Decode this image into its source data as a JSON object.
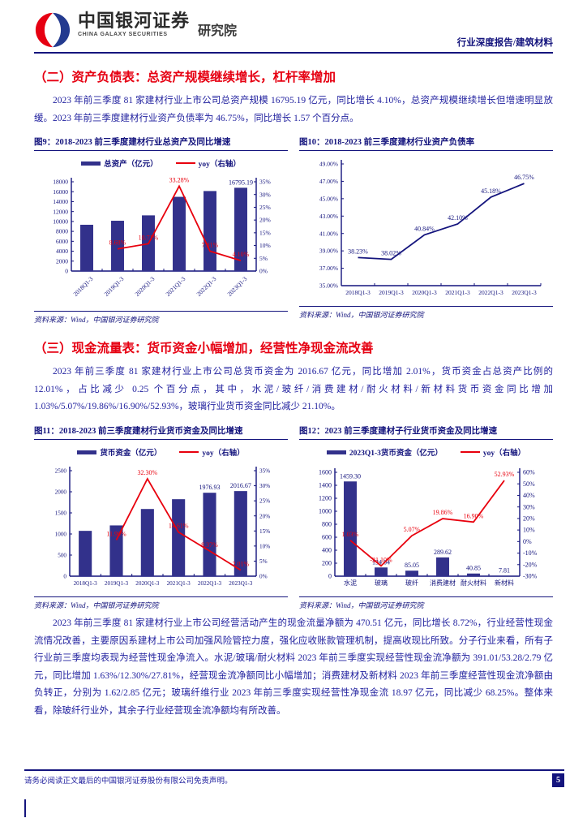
{
  "header": {
    "brand_cn": "中国银河证券",
    "brand_en": "CHINA GALAXY SECURITIES",
    "brand_suffix": "研究院",
    "report_tag": "行业深度报告/建筑材料"
  },
  "sections": [
    {
      "title": "（二）资产负债表：总资产规模继续增长，杠杆率增加",
      "paragraphs": [
        "2023 年前三季度 81 家建材行业上市公司总资产规模 16795.19 亿元，同比增长 4.10%，总资产规模继续增长但增速明显放缓。2023 年前三季度建材行业资产负债率为 46.75%，同比增长 1.57 个百分点。"
      ]
    },
    {
      "title": "（三）现金流量表：货币资金小幅增加，经营性净现金流改善",
      "paragraphs": [
        "2023 年前三季度 81 家建材行业上市公司总货币资金为 2016.67 亿元，同比增加 2.01%，货币资金占总资产比例的 12.01%，占比减少 0.25 个百分点，其中，水泥/玻纤/消费建材/耐火材料/新材料货币资金同比增加 1.03%/5.07%/19.86%/16.90%/52.93%，玻璃行业货币资金同比减少 21.10%。",
        "2023 年前三季度 81 家建材行业上市公司经营活动产生的现金流量净额为 470.51 亿元，同比增长 8.72%，行业经营性现金流情况改善，主要原因系建材上市公司加强风险管控力度，强化应收账款管理机制，提高收现比所致。分子行业来看，所有子行业前三季度均表现为经营性现金净流入。水泥/玻璃/耐火材料 2023 年前三季度实现经营性现金流净额为 391.01/53.28/2.79 亿元，同比增加 1.63%/12.30%/27.81%，经营现金流净额同比小幅增加；消费建材及新材料 2023 年前三季度经营性现金流净额由负转正，分别为 1.62/2.85 亿元；玻璃纤维行业 2023 年前三季度实现经营性净现金流 18.97 亿元，同比减少 68.25%。整体来看，除玻纤行业外，其余子行业经营现金流净额均有所改善。"
      ]
    }
  ],
  "chart_data": [
    {
      "type": "bar+line",
      "title": "图9：2018-2023 前三季度建材行业总资产及同比增速",
      "source": "资料来源：Wind，中国银河证券研究院",
      "categories": [
        "2018Q1-3",
        "2019Q1-3",
        "2020Q1-3",
        "2021Q1-3",
        "2022Q1-3",
        "2023Q1-3"
      ],
      "left_axis": {
        "min": 0,
        "max": 18000,
        "step": 2000,
        "format": "int"
      },
      "right_axis": {
        "min": 0,
        "max": 35,
        "step": 5,
        "format": "pct0"
      },
      "series": [
        {
          "name": "总资产（亿元）",
          "type": "bar",
          "axis": "left",
          "values": [
            9332,
            10142,
            11228,
            14965,
            16134,
            16795.19
          ],
          "point_labels": {
            "5": "16795.19"
          }
        },
        {
          "name": "yoy（右轴）",
          "type": "line",
          "axis": "right",
          "values": [
            null,
            8.68,
            10.71,
            33.28,
            7.81,
            4.1
          ],
          "point_labels": {
            "1": "8.68%",
            "2": "10.71%",
            "3": "33.28%",
            "4": "7.81%",
            "5": "4.10%"
          }
        }
      ]
    },
    {
      "type": "line",
      "title": "图10：2018-2023 前三季度建材行业资产负债率",
      "source": "资料来源：Wind，中国银河证券研究院",
      "categories": [
        "2018Q1-3",
        "2019Q1-3",
        "2020Q1-3",
        "2021Q1-3",
        "2022Q1-3",
        "2023Q1-3"
      ],
      "left_axis": {
        "min": 35,
        "max": 49,
        "step": 2,
        "format": "pct2"
      },
      "series": [
        {
          "name": "资产负债率",
          "type": "line",
          "axis": "left",
          "color": "navy",
          "values": [
            38.23,
            38.02,
            40.84,
            42.1,
            45.18,
            46.75
          ],
          "point_labels": {
            "0": "38.23%",
            "1": "38.02%",
            "2": "40.84%",
            "3": "42.10%",
            "4": "45.18%",
            "5": "46.75%"
          }
        }
      ]
    },
    {
      "type": "bar+line",
      "title": "图11：2018-2023 前三季度建材行业货币资金及同比增速",
      "source": "资料来源：Wind，中国银河证券研究院",
      "categories": [
        "2018Q1-3",
        "2019Q1-3",
        "2020Q1-3",
        "2021Q1-3",
        "2022Q1-3",
        "2023Q1-3"
      ],
      "left_axis": {
        "min": 0,
        "max": 2500,
        "step": 500,
        "format": "int"
      },
      "right_axis": {
        "min": 0,
        "max": 35,
        "step": 5,
        "format": "pct0"
      },
      "series": [
        {
          "name": "货币资金（亿元）",
          "type": "bar",
          "axis": "left",
          "values": [
            1074,
            1203,
            1592,
            1824,
            1976.93,
            2016.67
          ],
          "point_labels": {
            "4": "1976.93",
            "5": "2016.67"
          }
        },
        {
          "name": "yoy（右轴）",
          "type": "line",
          "axis": "right",
          "values": [
            null,
            11.99,
            32.3,
            14.61,
            8.37,
            2.01
          ],
          "point_labels": {
            "1": "11.99%",
            "2": "32.30%",
            "3": "14.61%",
            "4": "8.37%",
            "5": "2.01%"
          }
        }
      ]
    },
    {
      "type": "bar+line",
      "title": "图12：2023 前三季度建材子行业货币资金及同比增速",
      "source": "资料来源：Wind，中国银河证券研究院",
      "categories": [
        "水泥",
        "玻璃",
        "玻纤",
        "消费建材",
        "耐火材料",
        "新材料"
      ],
      "left_axis": {
        "min": 0,
        "max": 1600,
        "step": 200,
        "format": "int"
      },
      "right_axis": {
        "min": -30,
        "max": 60,
        "step": 10,
        "format": "pct0"
      },
      "series": [
        {
          "name": "2023Q1-3货币资金（亿元）",
          "type": "bar",
          "axis": "left",
          "values": [
            1459.3,
            134.04,
            85.05,
            289.62,
            40.85,
            7.81
          ],
          "point_labels": {
            "0": "1459.30",
            "1": "134.04",
            "2": "85.05",
            "3": "289.62",
            "4": "40.85",
            "5": "7.81"
          }
        },
        {
          "name": "yoy（右轴）",
          "type": "line",
          "axis": "right",
          "values": [
            1.03,
            -21.1,
            5.07,
            19.86,
            16.9,
            52.93
          ],
          "point_labels": {
            "0": "1.03%",
            "1": "-21.10%",
            "2": "5.07%",
            "3": "19.86%",
            "4": "16.90%",
            "5": "52.93%"
          }
        }
      ]
    }
  ],
  "footer": {
    "disclaimer": "请务必阅读正文最后的中国银河证券股份有限公司免责声明。",
    "page_number": "5"
  },
  "colors": {
    "navy": "#14147d",
    "bar_navy": "#32318b",
    "line_red": "#e8000d",
    "heading_red": "#e60012",
    "body_text": "#1f1f9e",
    "logo_red": "#e60012",
    "logo_blue": "#233a8f"
  }
}
